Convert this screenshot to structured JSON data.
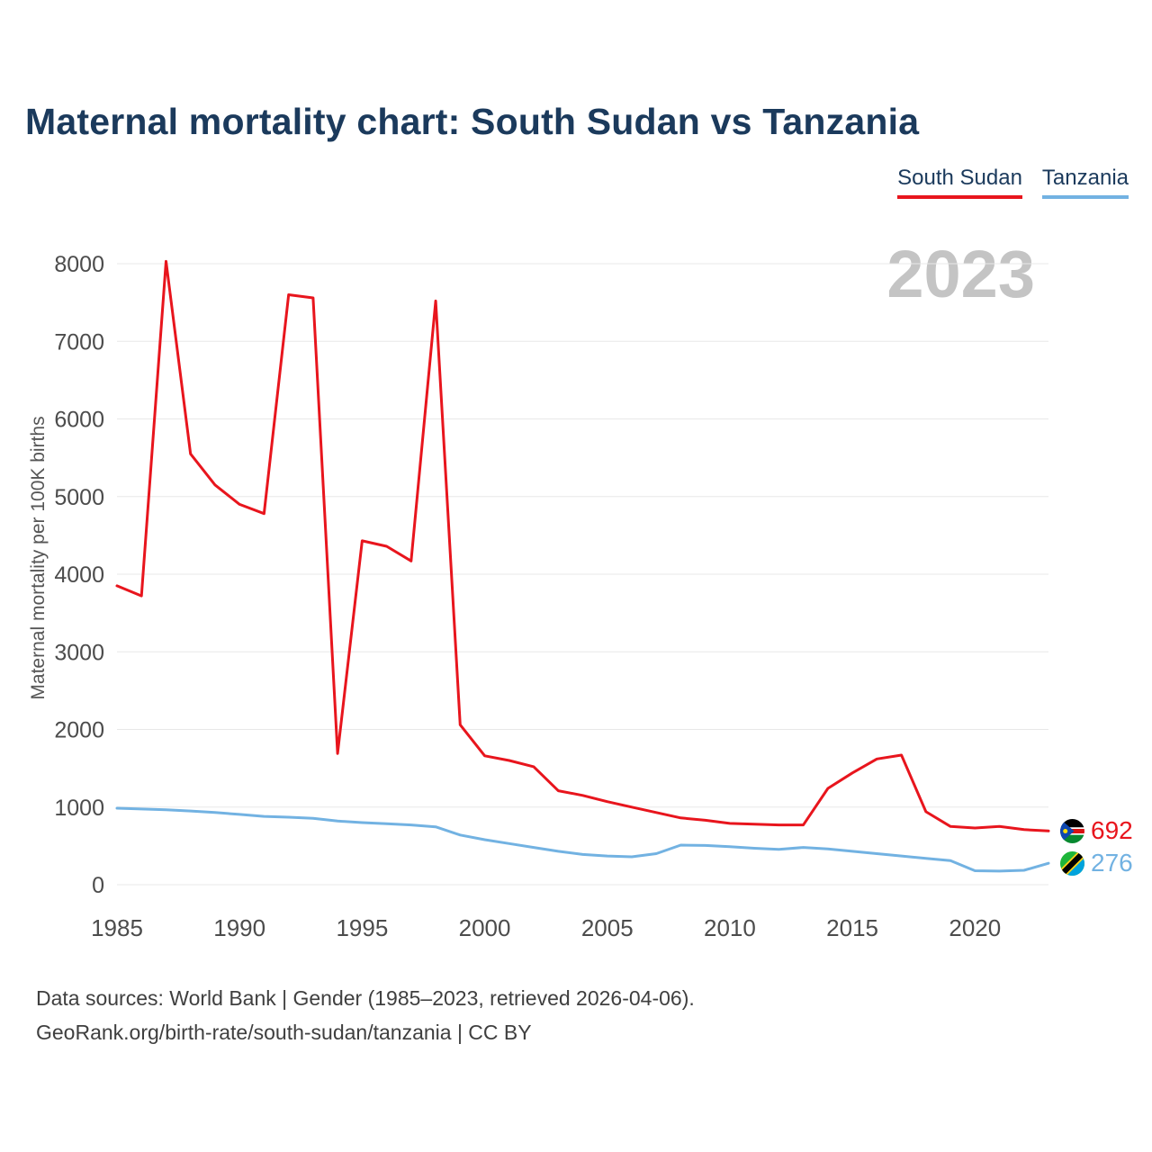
{
  "page": {
    "title": "Maternal mortality chart: South Sudan vs Tanzania",
    "watermark": "2023",
    "footer_line1": "Data sources: World Bank | Gender (1985–2023, retrieved 2026-04-06).",
    "footer_line2": "GeoRank.org/birth-rate/south-sudan/tanzania | CC BY"
  },
  "legend": [
    {
      "label": "South Sudan",
      "color": "#e8151d"
    },
    {
      "label": "Tanzania",
      "color": "#72b2e2"
    }
  ],
  "chart_data": {
    "type": "line",
    "title": "Maternal mortality chart: South Sudan vs Tanzania",
    "xlabel": "",
    "ylabel": "Maternal mortality per 100K births",
    "ylim": [
      0,
      8000
    ],
    "yticks": [
      0,
      1000,
      2000,
      3000,
      4000,
      5000,
      6000,
      7000,
      8000
    ],
    "xticks": [
      1985,
      1990,
      1995,
      2000,
      2005,
      2010,
      2015,
      2020
    ],
    "grid": "horizontal",
    "legend_position": "top-right",
    "x": [
      1985,
      1986,
      1987,
      1988,
      1989,
      1990,
      1991,
      1992,
      1993,
      1994,
      1995,
      1996,
      1997,
      1998,
      1999,
      2000,
      2001,
      2002,
      2003,
      2004,
      2005,
      2006,
      2007,
      2008,
      2009,
      2010,
      2011,
      2012,
      2013,
      2014,
      2015,
      2016,
      2017,
      2018,
      2019,
      2020,
      2021,
      2022,
      2023
    ],
    "series": [
      {
        "name": "South Sudan",
        "color": "#e8151d",
        "end_label": "692",
        "values": [
          3850,
          3720,
          8030,
          5550,
          5150,
          4900,
          4780,
          7600,
          7560,
          1690,
          4430,
          4360,
          4170,
          7520,
          2060,
          1660,
          1600,
          1520,
          1210,
          1150,
          1070,
          1000,
          930,
          860,
          830,
          790,
          780,
          770,
          770,
          1240,
          1440,
          1620,
          1670,
          940,
          750,
          730,
          750,
          710,
          692
        ]
      },
      {
        "name": "Tanzania",
        "color": "#72b2e2",
        "end_label": "276",
        "values": [
          985,
          975,
          965,
          950,
          930,
          905,
          880,
          870,
          855,
          820,
          800,
          785,
          770,
          745,
          640,
          580,
          530,
          480,
          430,
          390,
          370,
          360,
          400,
          510,
          505,
          490,
          470,
          455,
          480,
          460,
          430,
          400,
          370,
          340,
          310,
          180,
          175,
          185,
          276
        ]
      }
    ]
  }
}
